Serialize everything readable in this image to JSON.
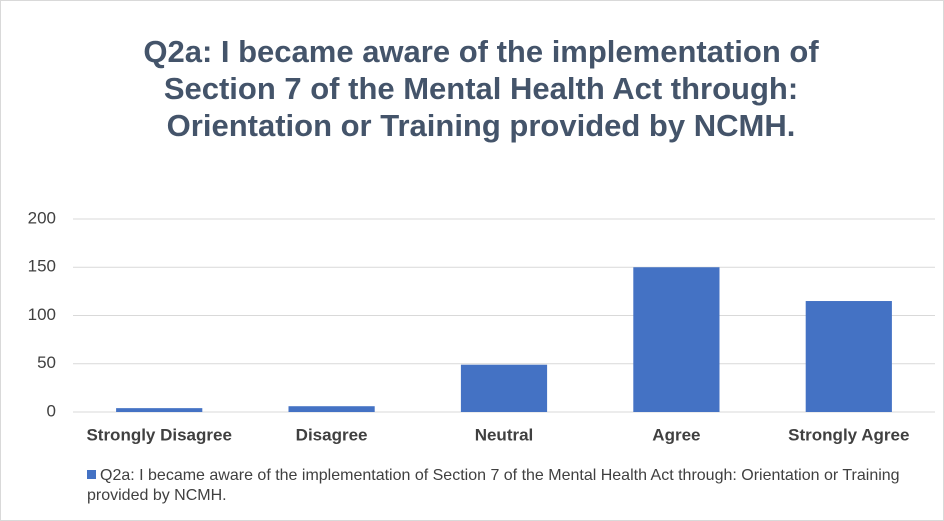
{
  "chart_data": {
    "type": "bar",
    "title": "Q2a: I became aware of the implementation of Section 7 of the Mental Health Act through: Orientation or Training provided by NCMH.",
    "categories": [
      "Strongly Disagree",
      "Disagree",
      "Neutral",
      "Agree",
      "Strongly Agree"
    ],
    "series": [
      {
        "name": "Q2a: I became aware of the implementation of Section 7 of the Mental Health Act through: Orientation or Training provided by NCMH.",
        "color": "#4472c4",
        "values": [
          4,
          6,
          49,
          150,
          115
        ]
      }
    ],
    "ylim": [
      0,
      200
    ],
    "yticks": [
      0,
      50,
      100,
      150,
      200
    ],
    "grid": true,
    "legend": "bottom"
  }
}
